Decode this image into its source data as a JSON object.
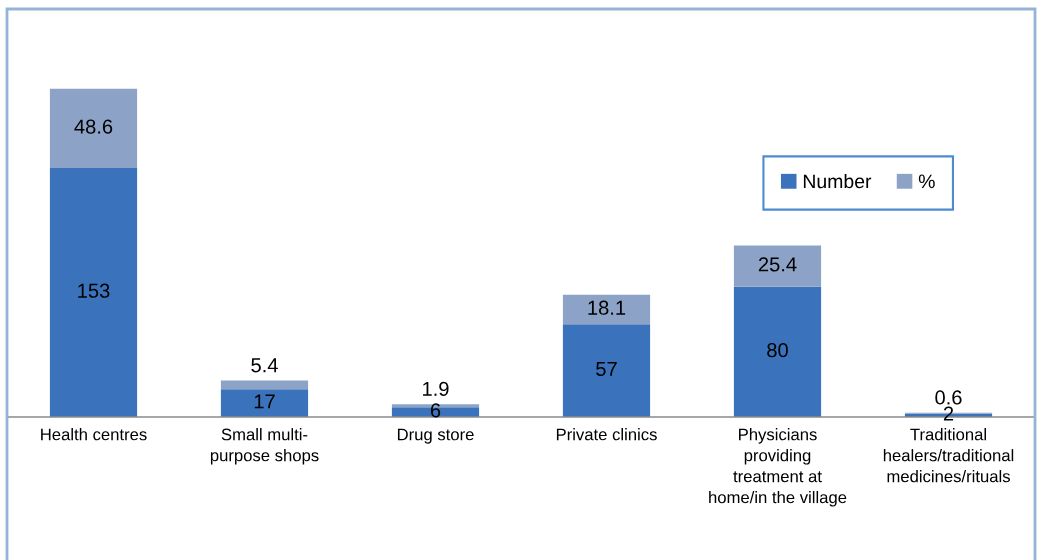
{
  "chart_data": {
    "type": "bar",
    "stacked": true,
    "categories": [
      "Health centres",
      "Small multi-\npurpose shops",
      "Drug store",
      "Private clinics",
      "Physicians\nproviding\ntreatment at\nhome/in the village",
      "Traditional\nhealers/traditional\nmedicines/rituals"
    ],
    "series": [
      {
        "name": "Number",
        "color": "#3a73bb",
        "values": [
          153,
          17,
          6,
          57,
          80,
          2
        ]
      },
      {
        "name": "%",
        "color": "#8ca3c7",
        "values": [
          48.6,
          5.4,
          1.9,
          18.1,
          25.4,
          0.6
        ]
      }
    ],
    "data_labels": true,
    "legend": "right",
    "tick_labels": "x"
  }
}
